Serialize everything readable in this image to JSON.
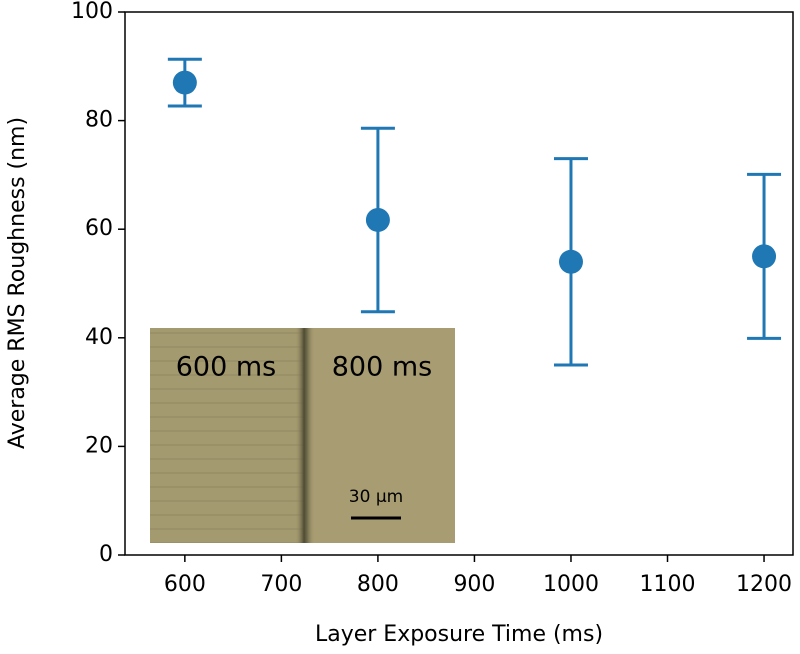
{
  "chart_data": {
    "type": "errorbar",
    "xlabel": "Layer Exposure Time (ms)",
    "ylabel": "Average RMS Roughness (nm)",
    "x": [
      600,
      800,
      1000,
      1200
    ],
    "series": [
      {
        "color": "#1f77b4",
        "values": [
          87,
          61.7,
          54,
          55
        ],
        "errors": [
          4.3,
          16.9,
          19,
          15.1
        ]
      }
    ],
    "xlim": [
      538,
      1230
    ],
    "xticks": [
      600,
      700,
      800,
      900,
      1000,
      1100,
      1200
    ],
    "ylim": [
      0,
      100
    ],
    "yticks": [
      0,
      20,
      40,
      60,
      80,
      100
    ],
    "grid": false,
    "inset": {
      "labels": [
        "600 ms",
        "800 ms"
      ],
      "scale_bar": "30 μm"
    }
  }
}
